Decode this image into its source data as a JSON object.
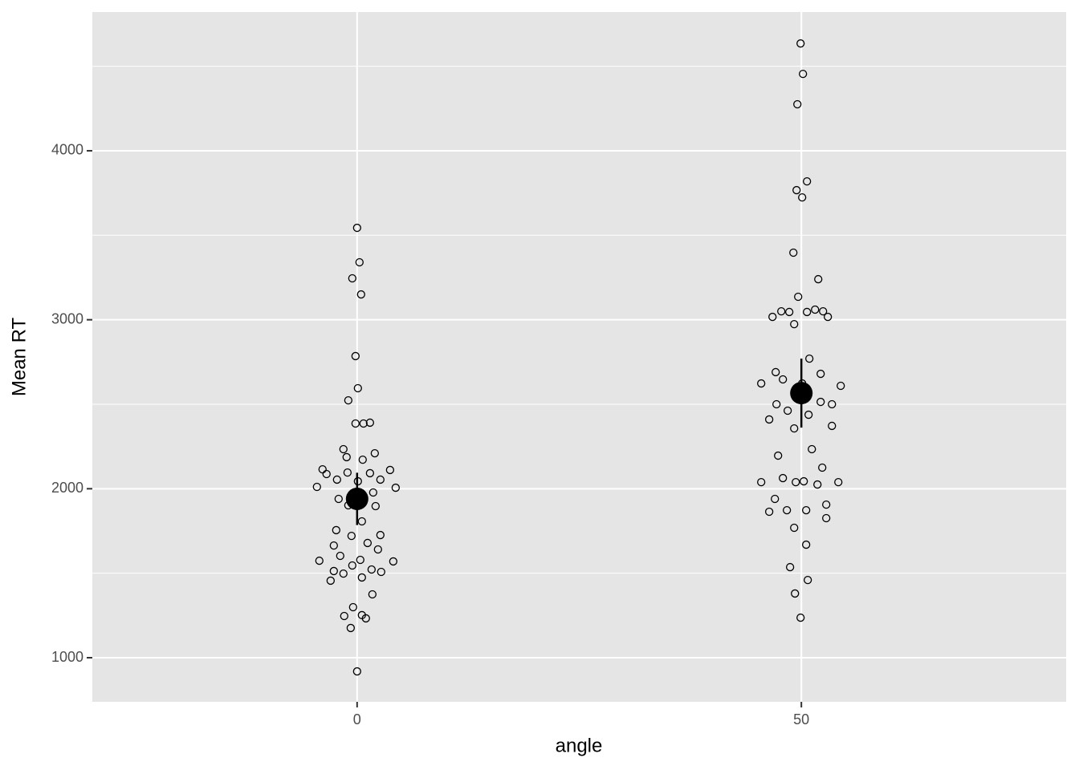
{
  "chart_data": {
    "type": "scatter",
    "x_label": "angle",
    "y_label": "Mean RT",
    "xlim": [
      -29.8,
      79.8
    ],
    "xticks": [
      0,
      50
    ],
    "ylim": [
      739,
      4821
    ],
    "yticks": [
      1000,
      2000,
      3000,
      4000
    ],
    "y_minor_ticks": [
      1500,
      2500,
      3500,
      4500
    ],
    "grid": true,
    "panel_color": "#e5e5e5",
    "grid_color": "#ffffff",
    "points": {
      "color": "#000000",
      "x": [
        0,
        0.27,
        -0.54,
        0.45,
        -0.18,
        0.09,
        -0.99,
        -0.18,
        0.72,
        1.45,
        -1.54,
        1.99,
        -1.18,
        0.63,
        -3.89,
        3.71,
        -3.44,
        -1.08,
        1.45,
        -2.26,
        2.62,
        -4.52,
        0.09,
        4.34,
        1.81,
        -2.08,
        -0.99,
        2.08,
        0.54,
        -2.35,
        -0.63,
        2.62,
        -2.62,
        1.18,
        2.35,
        -1.9,
        -4.25,
        0.36,
        4.07,
        -0.54,
        1.63,
        -2.62,
        2.71,
        -1.54,
        0.54,
        -2.98,
        1.72,
        -0.45,
        -1.45,
        0.54,
        0.99,
        -0.72,
        0,
        49.91,
        50.18,
        49.55,
        50.63,
        49.46,
        50.09,
        49.1,
        51.9,
        49.64,
        46.75,
        47.74,
        48.64,
        50.63,
        51.54,
        52.44,
        52.98,
        49.19,
        50.9,
        45.48,
        47.11,
        47.92,
        50.09,
        52.17,
        54.43,
        47.2,
        48.46,
        52.17,
        53.44,
        50.81,
        46.38,
        49.19,
        53.44,
        51.18,
        47.38,
        52.35,
        47.92,
        45.48,
        49.37,
        50.27,
        51.81,
        54.16,
        47.02,
        46.38,
        48.37,
        50.54,
        52.8,
        52.8,
        49.19,
        50.54,
        48.73,
        50.72,
        49.28,
        49.91
      ],
      "y": [
        3544,
        3340,
        3245,
        3150,
        2785,
        2595,
        2523,
        2386,
        2386,
        2391,
        2234,
        2210,
        2187,
        2172,
        2115,
        2111,
        2087,
        2096,
        2092,
        2054,
        2054,
        2011,
        2044,
        2006,
        1978,
        1940,
        1902,
        1897,
        1807,
        1755,
        1721,
        1726,
        1664,
        1679,
        1641,
        1603,
        1574,
        1579,
        1570,
        1546,
        1522,
        1513,
        1508,
        1498,
        1475,
        1456,
        1375,
        1299,
        1247,
        1252,
        1233,
        1176,
        919,
        4635,
        4455,
        4275,
        3819,
        3767,
        3724,
        3397,
        3240,
        3136,
        3017,
        3050,
        3046,
        3046,
        3060,
        3050,
        3017,
        2974,
        2770,
        2623,
        2690,
        2647,
        2623,
        2680,
        2609,
        2500,
        2462,
        2514,
        2500,
        2438,
        2410,
        2357,
        2372,
        2234,
        2196,
        2125,
        2063,
        2039,
        2039,
        2044,
        2025,
        2039,
        1940,
        1864,
        1873,
        1873,
        1906,
        1826,
        1769,
        1669,
        1536,
        1460,
        1380,
        1237
      ]
    },
    "means": {
      "color": "#000000",
      "x": [
        0,
        50
      ],
      "y": [
        1940,
        2566
      ],
      "error": [
        155,
        204
      ]
    }
  }
}
